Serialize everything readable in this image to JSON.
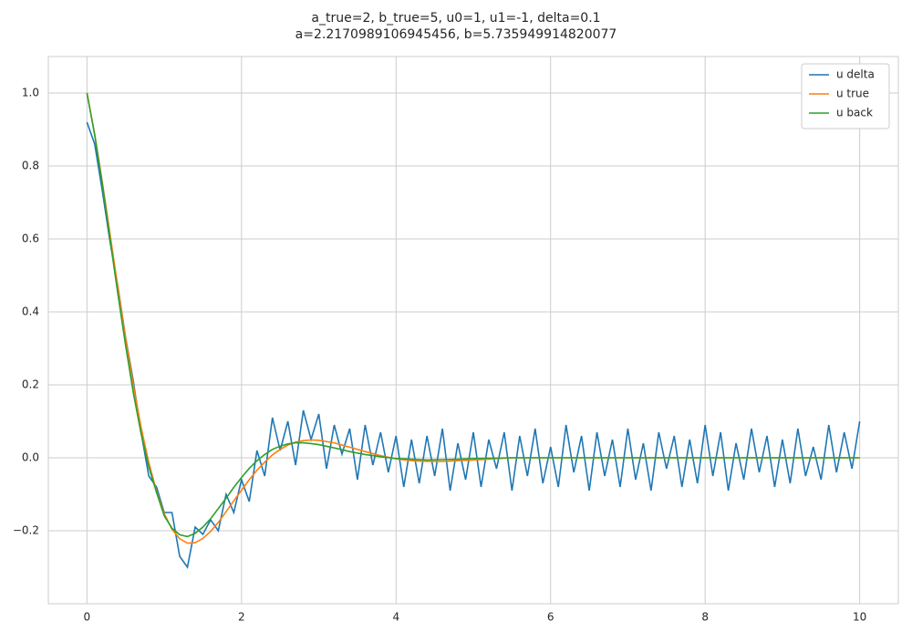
{
  "chart_data": {
    "type": "line",
    "title": "a_true=2, b_true=5, u0=1, u1=-1, delta=0.1",
    "subtitle": "a=2.2170989106945456, b=5.735949914820077",
    "xlim": [
      -0.5,
      10.5
    ],
    "ylim": [
      -0.4,
      1.1
    ],
    "xticks": [
      0,
      2,
      4,
      6,
      8,
      10
    ],
    "yticks": [
      {
        "value": -0.2,
        "label": "−0.2"
      },
      {
        "value": 0,
        "label": "0.0"
      },
      0.2,
      0.4,
      0.6,
      0.8,
      {
        "value": 1,
        "label": "1.0"
      }
    ],
    "grid": true,
    "legend": "upper right",
    "series": [
      {
        "name": "u delta",
        "color": "#1f77b4",
        "x": [
          0,
          0.1,
          0.2,
          0.3,
          0.4,
          0.5,
          0.6,
          0.7,
          0.8,
          0.9,
          1,
          1.1,
          1.2,
          1.3,
          1.4,
          1.5,
          1.6,
          1.7,
          1.8,
          1.9,
          2,
          2.1,
          2.2,
          2.3,
          2.4,
          2.5,
          2.6,
          2.7,
          2.8,
          2.9,
          3,
          3.1,
          3.2,
          3.3,
          3.4,
          3.5,
          3.6,
          3.7,
          3.8,
          3.9,
          4,
          4.1,
          4.2,
          4.3,
          4.4,
          4.5,
          4.6,
          4.7,
          4.8,
          4.9,
          5,
          5.1,
          5.2,
          5.3,
          5.4,
          5.5,
          5.6,
          5.7,
          5.8,
          5.9,
          6,
          6.1,
          6.2,
          6.3,
          6.4,
          6.5,
          6.6,
          6.7,
          6.8,
          6.9,
          7,
          7.1,
          7.2,
          7.3,
          7.4,
          7.5,
          7.6,
          7.7,
          7.8,
          7.9,
          8,
          8.1,
          8.2,
          8.3,
          8.4,
          8.5,
          8.6,
          8.7,
          8.8,
          8.9,
          9,
          9.1,
          9.2,
          9.3,
          9.4,
          9.5,
          9.6,
          9.7,
          9.8,
          9.9,
          10
        ],
        "values": [
          0.92,
          0.86,
          0.73,
          0.59,
          0.47,
          0.33,
          0.21,
          0.07,
          -0.05,
          -0.08,
          -0.15,
          -0.15,
          -0.27,
          -0.3,
          -0.19,
          -0.21,
          -0.17,
          -0.2,
          -0.1,
          -0.15,
          -0.06,
          -0.12,
          0.02,
          -0.05,
          0.11,
          0.02,
          0.1,
          -0.02,
          0.13,
          0.05,
          0.12,
          -0.03,
          0.09,
          0.01,
          0.08,
          -0.06,
          0.09,
          -0.02,
          0.07,
          -0.04,
          0.06,
          -0.08,
          0.05,
          -0.07,
          0.06,
          -0.05,
          0.08,
          -0.09,
          0.04,
          -0.06,
          0.07,
          -0.08,
          0.05,
          -0.03,
          0.07,
          -0.09,
          0.06,
          -0.05,
          0.08,
          -0.07,
          0.03,
          -0.08,
          0.09,
          -0.04,
          0.06,
          -0.09,
          0.07,
          -0.05,
          0.05,
          -0.08,
          0.08,
          -0.06,
          0.04,
          -0.09,
          0.07,
          -0.03,
          0.06,
          -0.08,
          0.05,
          -0.07,
          0.09,
          -0.05,
          0.07,
          -0.09,
          0.04,
          -0.06,
          0.08,
          -0.04,
          0.06,
          -0.08,
          0.05,
          -0.07,
          0.08,
          -0.05,
          0.03,
          -0.06,
          0.09,
          -0.04,
          0.07,
          -0.03,
          0.1
        ]
      },
      {
        "name": "u true",
        "color": "#ff7f0e",
        "x": [
          0,
          0.1,
          0.2,
          0.3,
          0.4,
          0.5,
          0.6,
          0.7,
          0.8,
          0.9,
          1,
          1.1,
          1.2,
          1.3,
          1.4,
          1.5,
          1.6,
          1.7,
          1.8,
          1.9,
          2,
          2.1,
          2.2,
          2.3,
          2.4,
          2.5,
          2.6,
          2.7,
          2.8,
          2.9,
          3,
          3.2,
          3.4,
          3.6,
          3.8,
          4,
          4.2,
          4.4,
          4.6,
          4.8,
          5,
          5.5,
          6,
          6.5,
          7,
          7.5,
          8,
          8.5,
          9,
          9.5,
          10
        ],
        "values": [
          1,
          0.887,
          0.754,
          0.611,
          0.467,
          0.328,
          0.199,
          0.084,
          -0.013,
          -0.092,
          -0.153,
          -0.196,
          -0.222,
          -0.234,
          -0.233,
          -0.221,
          -0.202,
          -0.177,
          -0.148,
          -0.118,
          -0.089,
          -0.06,
          -0.034,
          -0.012,
          0.008,
          0.023,
          0.035,
          0.043,
          0.047,
          0.049,
          0.048,
          0.041,
          0.029,
          0.017,
          0.006,
          -0.003,
          -0.008,
          -0.01,
          -0.01,
          -0.008,
          -0.006,
          0,
          0,
          0,
          0,
          0,
          0,
          0,
          0,
          0,
          0
        ]
      },
      {
        "name": "u back",
        "color": "#2ca02c",
        "x": [
          0,
          0.1,
          0.2,
          0.3,
          0.4,
          0.5,
          0.6,
          0.7,
          0.8,
          0.9,
          1,
          1.1,
          1.2,
          1.3,
          1.4,
          1.5,
          1.6,
          1.7,
          1.8,
          1.9,
          2,
          2.1,
          2.2,
          2.3,
          2.4,
          2.5,
          2.6,
          2.7,
          2.8,
          2.9,
          3,
          3.2,
          3.4,
          3.6,
          3.8,
          4,
          4.2,
          4.4,
          4.6,
          4.8,
          5,
          5.5,
          6,
          6.5,
          7,
          7.5,
          8,
          8.5,
          9,
          9.5,
          10
        ],
        "values": [
          1,
          0.885,
          0.748,
          0.597,
          0.449,
          0.308,
          0.178,
          0.067,
          -0.025,
          -0.095,
          -0.159,
          -0.193,
          -0.211,
          -0.216,
          -0.207,
          -0.19,
          -0.167,
          -0.139,
          -0.111,
          -0.081,
          -0.054,
          -0.029,
          -0.008,
          0.009,
          0.023,
          0.032,
          0.038,
          0.041,
          0.041,
          0.039,
          0.036,
          0.027,
          0.017,
          0.009,
          0.003,
          -0.002,
          -0.004,
          -0.006,
          -0.005,
          -0.004,
          -0.002,
          0,
          0,
          0,
          0,
          0,
          0,
          0,
          0,
          0,
          0
        ]
      }
    ]
  }
}
